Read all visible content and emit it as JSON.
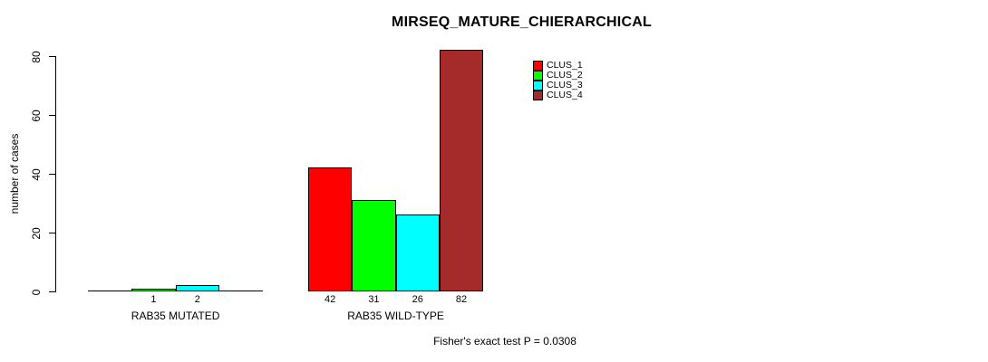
{
  "chart_data": {
    "type": "bar",
    "title": "MIRSEQ_MATURE_CHIERARCHICAL",
    "ylabel": "number of cases",
    "xlabel": "",
    "footer": "Fisher's exact test P = 0.0308",
    "ylim": [
      0,
      82
    ],
    "ytick_values": [
      0,
      20,
      40,
      60,
      80
    ],
    "ytick_labels": [
      "0",
      "20",
      "40",
      "60",
      "80"
    ],
    "categories": [
      "RAB35 MUTATED",
      "RAB35 WILD-TYPE"
    ],
    "series": [
      {
        "name": "CLUS_1",
        "color": "#ff0000",
        "values": [
          0,
          42
        ]
      },
      {
        "name": "CLUS_2",
        "color": "#00ff00",
        "values": [
          1,
          31
        ]
      },
      {
        "name": "CLUS_3",
        "color": "#00ffff",
        "values": [
          2,
          26
        ]
      },
      {
        "name": "CLUS_4",
        "color": "#a52a2a",
        "values": [
          0,
          82
        ]
      }
    ],
    "bar_value_labels": {
      "RAB35 MUTATED": [
        "",
        "1",
        "2",
        ""
      ],
      "RAB35 WILD-TYPE": [
        "42",
        "31",
        "26",
        "82"
      ]
    },
    "legend": {
      "position": "inside-top-right",
      "entries": [
        "CLUS_1",
        "CLUS_2",
        "CLUS_3",
        "CLUS_4"
      ]
    },
    "grid": false,
    "background_color": "#ffffff",
    "axis_color": "#000000",
    "bar_border_color": "#000000",
    "text_color": "#000000"
  }
}
